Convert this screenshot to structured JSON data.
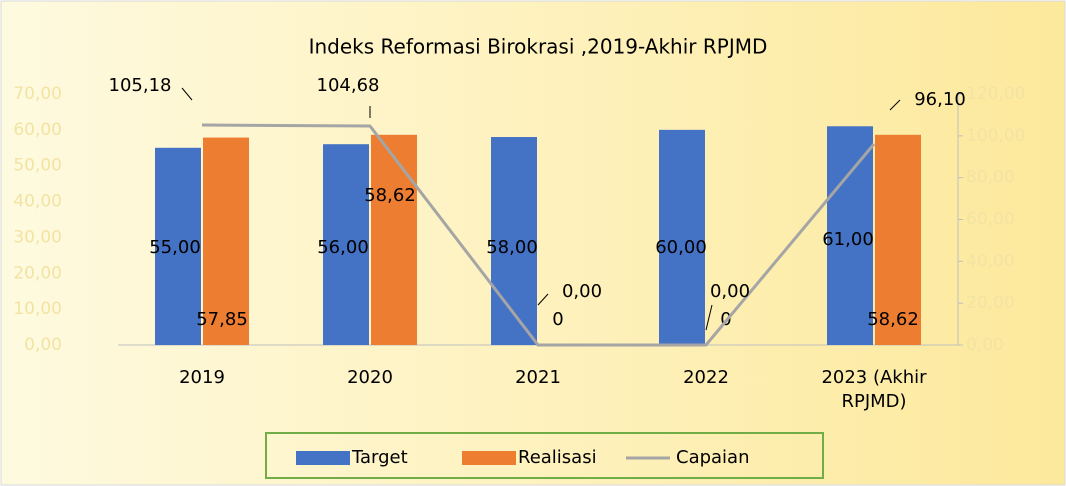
{
  "chart_data": {
    "type": "bar",
    "title": "Indeks Reformasi Birokrasi ,2019-Akhir RPJMD",
    "categories": [
      "2019",
      "2020",
      "2021",
      "2022",
      "2023 (Akhir RPJMD)"
    ],
    "series": [
      {
        "name": "Target",
        "color": "#4472c4",
        "values": [
          55,
          56,
          58,
          60,
          61
        ],
        "value_labels": [
          "55,00",
          "56,00",
          "58,00",
          "60,00",
          "61,00"
        ]
      },
      {
        "name": "Realisasi",
        "color": "#ed7d31",
        "values": [
          57.85,
          58.62,
          0,
          0,
          58.62
        ],
        "value_labels": [
          "57,85",
          "58,62",
          "0",
          "0",
          "58,62"
        ]
      },
      {
        "name": "Capaian",
        "type": "line",
        "axis": "y2",
        "color": "#a5a5a5",
        "values": [
          105.18,
          104.68,
          0,
          0,
          96.1
        ],
        "value_labels": [
          "105,18",
          "104,68",
          "0,00",
          "0,00",
          "96,10"
        ]
      }
    ],
    "ylim": [
      0,
      70
    ],
    "yticks": [
      {
        "value": 0,
        "label": "0,00"
      },
      {
        "value": 10,
        "label": "10,00"
      },
      {
        "value": 20,
        "label": "20,00"
      },
      {
        "value": 30,
        "label": "30,00"
      },
      {
        "value": 40,
        "label": "40,00"
      },
      {
        "value": 50,
        "label": "50,00"
      },
      {
        "value": 60,
        "label": "60,00"
      },
      {
        "value": 70,
        "label": "70,00"
      }
    ],
    "y2lim": [
      0,
      120
    ],
    "y2ticks": [
      {
        "value": 0,
        "label": "0,00"
      },
      {
        "value": 20,
        "label": "20,00"
      },
      {
        "value": 40,
        "label": "40,00"
      },
      {
        "value": 60,
        "label": "60,00"
      },
      {
        "value": 80,
        "label": "80,00"
      },
      {
        "value": 100,
        "label": "100,00"
      },
      {
        "value": 120,
        "label": "120,00"
      }
    ],
    "legend": "bottom"
  }
}
